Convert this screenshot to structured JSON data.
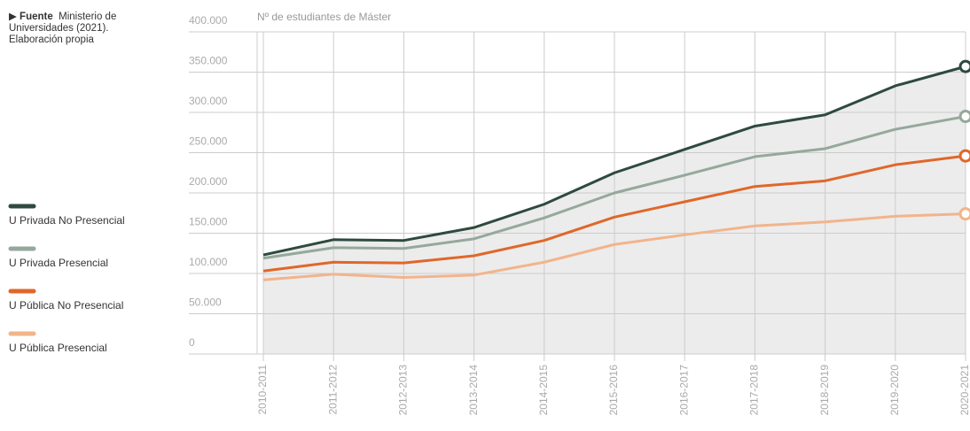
{
  "chart_data": {
    "type": "line",
    "source": {
      "label": "Fuente",
      "text": "Ministerio de Universidades (2021). Elaboración propia"
    },
    "y_label": "Nº de estudiantes de Máster",
    "categories": [
      "2010-2011",
      "2011-2012",
      "2012-2013",
      "2013-2014",
      "2014-2015",
      "2015-2016",
      "2016-2017",
      "2017-2018",
      "2018-2019",
      "2019-2020",
      "2020-2021"
    ],
    "series": [
      {
        "name": "U Privada No Presencial",
        "color": "#2d4a3e",
        "values": [
          123000,
          142000,
          141000,
          157000,
          186000,
          225000,
          254000,
          283000,
          297000,
          333000,
          357000
        ]
      },
      {
        "name": "U Privada Presencial",
        "color": "#95a89c",
        "values": [
          119000,
          132000,
          131000,
          143000,
          169000,
          200000,
          222000,
          245000,
          255000,
          279000,
          295000
        ]
      },
      {
        "name": "U Pública No Presencial",
        "color": "#e0672a",
        "values": [
          103000,
          114000,
          113000,
          122000,
          141000,
          170000,
          189000,
          208000,
          215000,
          235000,
          246000
        ]
      },
      {
        "name": "U Pública Presencial",
        "color": "#f2b48c",
        "values": [
          92000,
          99000,
          95000,
          98000,
          114000,
          136000,
          148000,
          159000,
          164000,
          171000,
          174000
        ]
      }
    ],
    "ylim": [
      0,
      400000
    ],
    "yticks": [
      0,
      {
        "value": 50000,
        "label": "50.000"
      },
      {
        "value": 100000,
        "label": "100.000"
      },
      {
        "value": 150000,
        "label": "150.000"
      },
      {
        "value": 200000,
        "label": "200.000"
      },
      {
        "value": 250000,
        "label": "250.000"
      },
      {
        "value": 300000,
        "label": "300.000"
      },
      {
        "value": 350000,
        "label": "350.000"
      },
      {
        "value": 400000,
        "label": "400.000"
      }
    ],
    "grid": true
  }
}
